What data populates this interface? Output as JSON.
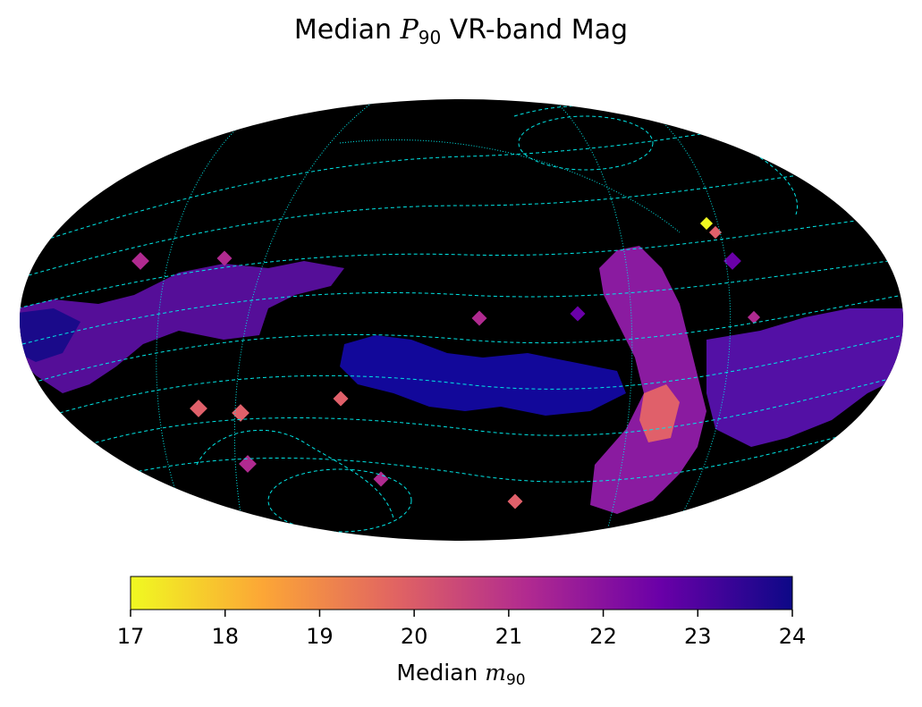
{
  "title": {
    "prefix": "Median ",
    "symbol": "P",
    "subscript": "90",
    "suffix": " VR-band Mag"
  },
  "colorbar": {
    "label_prefix": "Median ",
    "label_symbol": "m",
    "label_subscript": "90",
    "min": 17,
    "max": 24,
    "ticks": [
      "17",
      "18",
      "19",
      "20",
      "21",
      "22",
      "23",
      "24"
    ],
    "colormap": "plasma",
    "colors": [
      "#f0f921",
      "#fca636",
      "#e16462",
      "#b12a90",
      "#6a00a8",
      "#0d0887"
    ]
  },
  "chart_data": {
    "type": "heatmap",
    "projection": "mollweide",
    "title": "Median P90 VR-band Mag",
    "value_label": "Median m90",
    "vmin": 17,
    "vmax": 24,
    "background": "#000000",
    "graticule_color": "#00e5e5"
  }
}
